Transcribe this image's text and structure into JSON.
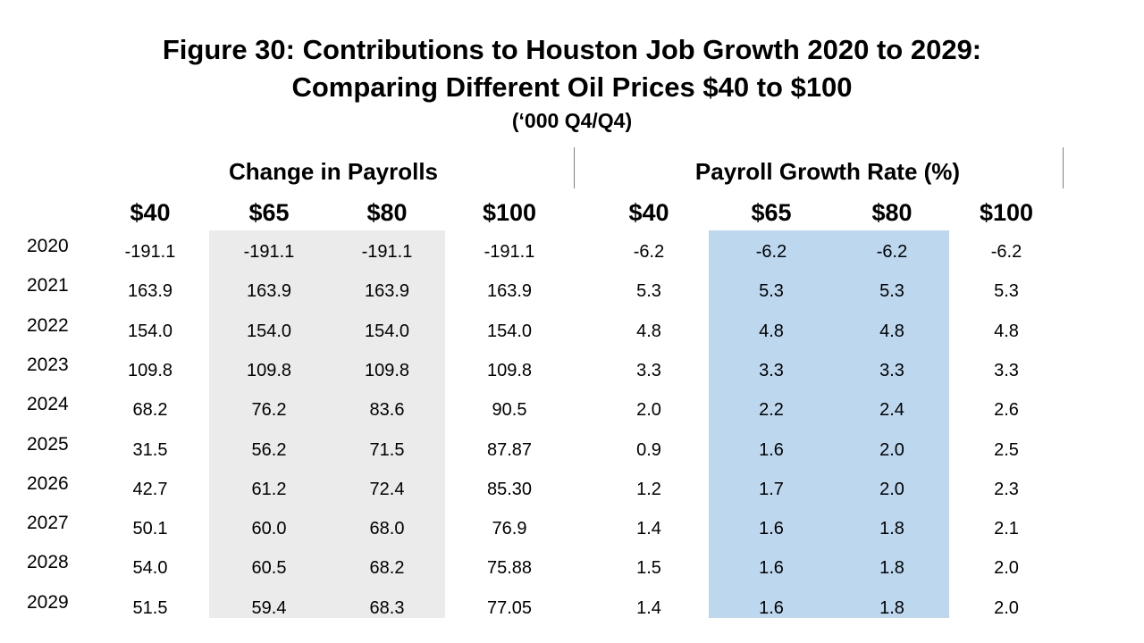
{
  "title": {
    "line1": "Figure 30: Contributions to Houston Job Growth 2020 to 2029:",
    "line2": "Comparing Different Oil Prices $40 to $100",
    "line3": "(‘000 Q4/Q4)"
  },
  "groups": {
    "payrolls": "Change in Payrolls",
    "growth": "Payroll Growth Rate (%)"
  },
  "columns": [
    "$40",
    "$65",
    "$80",
    "$100",
    "$40",
    "$65",
    "$80",
    "$100"
  ],
  "colors": {
    "gray_shade": "#ebebeb",
    "blue_shade": "#bdd7ee"
  },
  "rows": [
    {
      "year": "2020",
      "values": [
        "-191.1",
        "-191.1",
        "-191.1",
        "-191.1",
        "-6.2",
        "-6.2",
        "-6.2",
        "-6.2"
      ]
    },
    {
      "year": "2021",
      "values": [
        "163.9",
        "163.9",
        "163.9",
        "163.9",
        "5.3",
        "5.3",
        "5.3",
        "5.3"
      ]
    },
    {
      "year": "2022",
      "values": [
        "154.0",
        "154.0",
        "154.0",
        "154.0",
        "4.8",
        "4.8",
        "4.8",
        "4.8"
      ]
    },
    {
      "year": "2023",
      "values": [
        "109.8",
        "109.8",
        "109.8",
        "109.8",
        "3.3",
        "3.3",
        "3.3",
        "3.3"
      ]
    },
    {
      "year": "2024",
      "values": [
        "68.2",
        "76.2",
        "83.6",
        "90.5",
        "2.0",
        "2.2",
        "2.4",
        "2.6"
      ]
    },
    {
      "year": "2025",
      "values": [
        "31.5",
        "56.2",
        "71.5",
        "87.87",
        "0.9",
        "1.6",
        "2.0",
        "2.5"
      ]
    },
    {
      "year": "2026",
      "values": [
        "42.7",
        "61.2",
        "72.4",
        "85.30",
        "1.2",
        "1.7",
        "2.0",
        "2.3"
      ]
    },
    {
      "year": "2027",
      "values": [
        "50.1",
        "60.0",
        "68.0",
        "76.9",
        "1.4",
        "1.6",
        "1.8",
        "2.1"
      ]
    },
    {
      "year": "2028",
      "values": [
        "54.0",
        "60.5",
        "68.2",
        "75.88",
        "1.5",
        "1.6",
        "1.8",
        "2.0"
      ]
    },
    {
      "year": "2029",
      "values": [
        "51.5",
        "59.4",
        "68.3",
        "77.05",
        "1.4",
        "1.6",
        "1.8",
        "2.0"
      ]
    }
  ]
}
